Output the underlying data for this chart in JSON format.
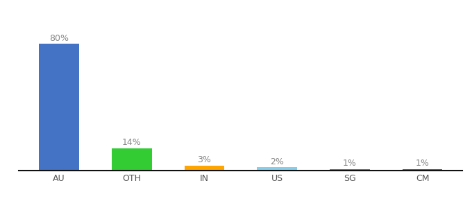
{
  "categories": [
    "AU",
    "OTH",
    "IN",
    "US",
    "SG",
    "CM"
  ],
  "values": [
    80,
    14,
    3,
    2,
    1,
    1
  ],
  "labels": [
    "80%",
    "14%",
    "3%",
    "2%",
    "1%",
    "1%"
  ],
  "bar_colors": [
    "#4472C4",
    "#33CC33",
    "#FFA500",
    "#87CEEB",
    "#B85C38",
    "#228B22"
  ],
  "ylim": [
    0,
    92
  ],
  "background_color": "#ffffff",
  "label_fontsize": 9,
  "tick_fontsize": 9,
  "label_color": "#888888",
  "tick_color": "#555555",
  "bottom_spine_color": "#111111",
  "bar_width": 0.55
}
